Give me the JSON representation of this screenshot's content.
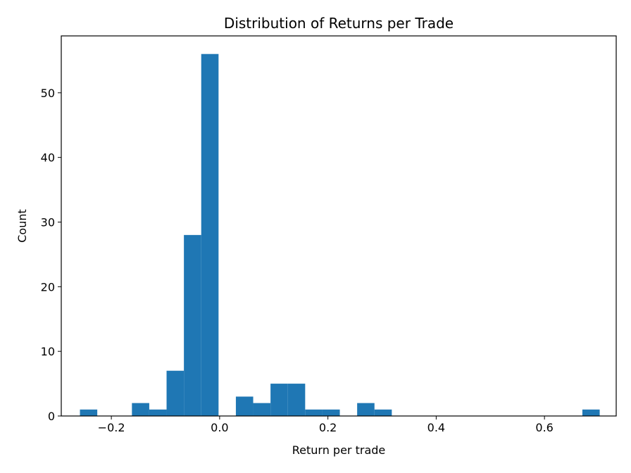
{
  "chart_data": {
    "type": "bar",
    "title": "Distribution of Returns per Trade",
    "xlabel": "Return per trade",
    "ylabel": "Count",
    "xlim": [
      -0.2925,
      0.7325
    ],
    "ylim": [
      0,
      58.8
    ],
    "xticks": [
      -0.2,
      0.0,
      0.2,
      0.4,
      0.6
    ],
    "xtick_labels": [
      "−0.2",
      "0.0",
      "0.2",
      "0.4",
      "0.6"
    ],
    "yticks": [
      0,
      10,
      20,
      30,
      40,
      50
    ],
    "ytick_labels": [
      "0",
      "10",
      "20",
      "30",
      "40",
      "50"
    ],
    "grid": false,
    "color": "#1f77b4",
    "bins": [
      {
        "x0": -0.258,
        "x1": -0.226,
        "count": 1
      },
      {
        "x0": -0.226,
        "x1": -0.194,
        "count": 0
      },
      {
        "x0": -0.194,
        "x1": -0.162,
        "count": 0
      },
      {
        "x0": -0.162,
        "x1": -0.13,
        "count": 2
      },
      {
        "x0": -0.13,
        "x1": -0.098,
        "count": 1
      },
      {
        "x0": -0.098,
        "x1": -0.066,
        "count": 7
      },
      {
        "x0": -0.066,
        "x1": -0.034,
        "count": 28
      },
      {
        "x0": -0.034,
        "x1": -0.002,
        "count": 56
      },
      {
        "x0": -0.002,
        "x1": 0.03,
        "count": 0
      },
      {
        "x0": 0.03,
        "x1": 0.062,
        "count": 3
      },
      {
        "x0": 0.062,
        "x1": 0.094,
        "count": 2
      },
      {
        "x0": 0.094,
        "x1": 0.126,
        "count": 5
      },
      {
        "x0": 0.126,
        "x1": 0.158,
        "count": 5
      },
      {
        "x0": 0.158,
        "x1": 0.19,
        "count": 1
      },
      {
        "x0": 0.19,
        "x1": 0.222,
        "count": 1
      },
      {
        "x0": 0.222,
        "x1": 0.254,
        "count": 0
      },
      {
        "x0": 0.254,
        "x1": 0.286,
        "count": 2
      },
      {
        "x0": 0.286,
        "x1": 0.318,
        "count": 1
      },
      {
        "x0": 0.318,
        "x1": 0.35,
        "count": 0
      },
      {
        "x0": 0.35,
        "x1": 0.382,
        "count": 0
      },
      {
        "x0": 0.382,
        "x1": 0.414,
        "count": 0
      },
      {
        "x0": 0.414,
        "x1": 0.446,
        "count": 0
      },
      {
        "x0": 0.446,
        "x1": 0.478,
        "count": 0
      },
      {
        "x0": 0.478,
        "x1": 0.51,
        "count": 0
      },
      {
        "x0": 0.51,
        "x1": 0.542,
        "count": 0
      },
      {
        "x0": 0.542,
        "x1": 0.574,
        "count": 0
      },
      {
        "x0": 0.574,
        "x1": 0.606,
        "count": 0
      },
      {
        "x0": 0.606,
        "x1": 0.638,
        "count": 0
      },
      {
        "x0": 0.638,
        "x1": 0.67,
        "count": 0
      },
      {
        "x0": 0.67,
        "x1": 0.702,
        "count": 1
      }
    ]
  }
}
